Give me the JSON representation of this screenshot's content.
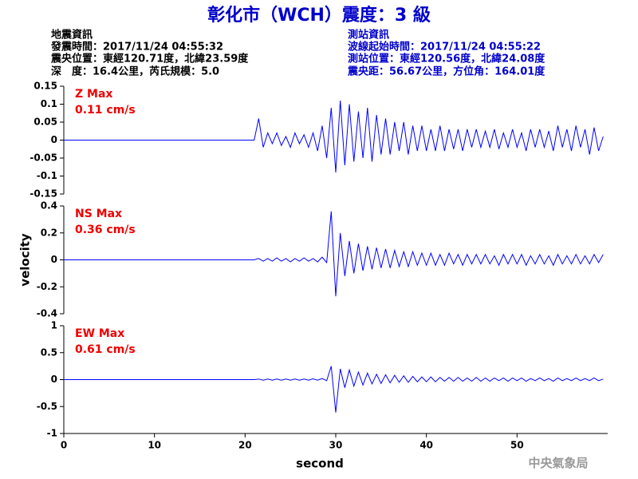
{
  "header": {
    "title": "彰化市（WCH）震度：3 級",
    "left": [
      "地震資訊",
      "發震時間：2017/11/24 04:55:32",
      "震央位置：東經120.71度，北緯23.59度",
      "深　度：16.4公里，芮氏規模：5.0"
    ],
    "right": [
      "測站資訊",
      "波線起始時間：2017/11/24 04:55:22",
      "測站位置：東經120.56度，北緯24.08度",
      "震央距：56.67公里，方位角：164.01度"
    ],
    "watermark": "中央氣象局"
  },
  "chart_data": [
    {
      "type": "line",
      "annotations": [
        "Z Max",
        "0.11 cm/s"
      ],
      "xlim": [
        0,
        60
      ],
      "ylim": [
        -0.15,
        0.15
      ],
      "yticks": [
        -0.15,
        -0.1,
        -0.05,
        0,
        0.05,
        0.1,
        0.15
      ],
      "x": [
        0,
        21,
        21.5,
        22,
        22.5,
        23,
        23.5,
        24,
        24.5,
        25,
        25.5,
        26,
        26.5,
        27,
        27.5,
        28,
        28.5,
        29,
        29.5,
        30,
        30.5,
        31,
        31.5,
        32,
        32.5,
        33,
        33.5,
        34,
        34.5,
        35,
        35.5,
        36,
        36.5,
        37,
        37.5,
        38,
        38.5,
        39,
        39.5,
        40,
        40.5,
        41,
        41.5,
        42,
        42.5,
        43,
        43.5,
        44,
        44.5,
        45,
        45.5,
        46,
        46.5,
        47,
        47.5,
        48,
        48.5,
        49,
        49.5,
        50,
        50.5,
        51,
        51.5,
        52,
        52.5,
        53,
        53.5,
        54,
        54.5,
        55,
        55.5,
        56,
        56.5,
        57,
        57.5,
        58,
        58.5,
        59,
        59.5
      ],
      "series": [
        {
          "color": "#0000ff",
          "values": [
            0,
            0,
            0.06,
            -0.02,
            0.02,
            -0.01,
            0.02,
            -0.015,
            0.01,
            -0.02,
            0.02,
            -0.01,
            0.015,
            -0.02,
            0.02,
            -0.03,
            0.04,
            -0.05,
            0.09,
            -0.09,
            0.11,
            -0.07,
            0.1,
            -0.06,
            0.08,
            -0.05,
            0.09,
            -0.06,
            0.07,
            -0.04,
            0.06,
            -0.04,
            0.05,
            -0.03,
            0.05,
            -0.04,
            0.04,
            -0.03,
            0.04,
            -0.03,
            0.03,
            -0.03,
            0.04,
            -0.03,
            0.03,
            -0.025,
            0.03,
            -0.03,
            0.03,
            -0.02,
            0.03,
            -0.02,
            0.025,
            -0.02,
            0.03,
            -0.025,
            0.02,
            -0.02,
            0.03,
            -0.02,
            0.02,
            -0.03,
            0.03,
            -0.02,
            0.03,
            -0.02,
            0.025,
            -0.03,
            0.04,
            -0.02,
            0.03,
            -0.03,
            0.04,
            -0.02,
            0.03,
            -0.04,
            0.035,
            -0.03,
            0.01
          ]
        }
      ]
    },
    {
      "type": "line",
      "ylabel": "velocity",
      "annotations": [
        "NS Max",
        "0.36 cm/s"
      ],
      "xlim": [
        0,
        60
      ],
      "ylim": [
        -0.4,
        0.4
      ],
      "yticks": [
        -0.4,
        -0.2,
        0,
        0.2,
        0.4
      ],
      "x": [
        0,
        21,
        21.5,
        22,
        22.5,
        23,
        23.5,
        24,
        24.5,
        25,
        25.5,
        26,
        26.5,
        27,
        27.5,
        28,
        28.5,
        29,
        29.5,
        30,
        30.5,
        31,
        31.5,
        32,
        32.5,
        33,
        33.5,
        34,
        34.5,
        35,
        35.5,
        36,
        36.5,
        37,
        37.5,
        38,
        38.5,
        39,
        39.5,
        40,
        40.5,
        41,
        41.5,
        42,
        42.5,
        43,
        43.5,
        44,
        44.5,
        45,
        45.5,
        46,
        46.5,
        47,
        47.5,
        48,
        48.5,
        49,
        49.5,
        50,
        50.5,
        51,
        51.5,
        52,
        52.5,
        53,
        53.5,
        54,
        54.5,
        55,
        55.5,
        56,
        56.5,
        57,
        57.5,
        58,
        58.5,
        59,
        59.5
      ],
      "series": [
        {
          "color": "#0000ff",
          "values": [
            0,
            0,
            0.01,
            -0.01,
            0.01,
            -0.01,
            0.015,
            -0.01,
            0.01,
            -0.015,
            0.01,
            -0.01,
            0.015,
            -0.01,
            0.01,
            -0.015,
            0.02,
            -0.02,
            0.36,
            -0.27,
            0.2,
            -0.12,
            0.14,
            -0.1,
            0.12,
            -0.08,
            0.1,
            -0.07,
            0.09,
            -0.06,
            0.08,
            -0.06,
            0.07,
            -0.05,
            0.06,
            -0.05,
            0.06,
            -0.04,
            0.05,
            -0.04,
            0.05,
            -0.04,
            0.04,
            -0.04,
            0.05,
            -0.03,
            0.04,
            -0.04,
            0.04,
            -0.03,
            0.04,
            -0.03,
            0.04,
            -0.03,
            0.03,
            -0.04,
            0.04,
            -0.03,
            0.04,
            -0.03,
            0.04,
            -0.04,
            0.03,
            -0.03,
            0.04,
            -0.03,
            0.03,
            -0.04,
            0.04,
            -0.03,
            0.03,
            -0.03,
            0.04,
            -0.03,
            0.03,
            -0.03,
            0.04,
            -0.02,
            0.04
          ]
        }
      ]
    },
    {
      "type": "line",
      "xlabel": "second",
      "annotations": [
        "EW Max",
        "0.61 cm/s"
      ],
      "xlim": [
        0,
        60
      ],
      "xticks": [
        0,
        10,
        20,
        30,
        40,
        50
      ],
      "ylim": [
        -1,
        1
      ],
      "yticks": [
        -1,
        -0.5,
        0,
        0.5,
        1
      ],
      "x": [
        0,
        21,
        21.5,
        22,
        22.5,
        23,
        23.5,
        24,
        24.5,
        25,
        25.5,
        26,
        26.5,
        27,
        27.5,
        28,
        28.5,
        29,
        29.5,
        30,
        30.5,
        31,
        31.5,
        32,
        32.5,
        33,
        33.5,
        34,
        34.5,
        35,
        35.5,
        36,
        36.5,
        37,
        37.5,
        38,
        38.5,
        39,
        39.5,
        40,
        40.5,
        41,
        41.5,
        42,
        42.5,
        43,
        43.5,
        44,
        44.5,
        45,
        45.5,
        46,
        46.5,
        47,
        47.5,
        48,
        48.5,
        49,
        49.5,
        50,
        50.5,
        51,
        51.5,
        52,
        52.5,
        53,
        53.5,
        54,
        54.5,
        55,
        55.5,
        56,
        56.5,
        57,
        57.5,
        58,
        58.5,
        59,
        59.5
      ],
      "series": [
        {
          "color": "#0000ff",
          "values": [
            0,
            0,
            0.01,
            -0.01,
            0.01,
            -0.01,
            0.01,
            -0.01,
            0.01,
            -0.01,
            0.01,
            -0.01,
            0.01,
            -0.01,
            0.015,
            -0.01,
            0.02,
            -0.02,
            0.25,
            -0.61,
            0.2,
            -0.15,
            0.18,
            -0.12,
            0.14,
            -0.1,
            0.12,
            -0.08,
            0.1,
            -0.07,
            0.09,
            -0.06,
            0.08,
            -0.05,
            0.07,
            -0.05,
            0.06,
            -0.04,
            0.05,
            -0.04,
            0.05,
            -0.04,
            0.04,
            -0.03,
            0.04,
            -0.03,
            0.04,
            -0.03,
            0.03,
            -0.03,
            0.04,
            -0.03,
            0.03,
            -0.03,
            0.03,
            -0.02,
            0.03,
            -0.03,
            0.03,
            -0.02,
            0.03,
            -0.03,
            0.02,
            -0.02,
            0.03,
            -0.02,
            0.02,
            -0.03,
            0.03,
            -0.02,
            0.02,
            -0.02,
            0.03,
            -0.02,
            0.02,
            -0.02,
            0.03,
            -0.02,
            0.01
          ]
        }
      ]
    }
  ]
}
